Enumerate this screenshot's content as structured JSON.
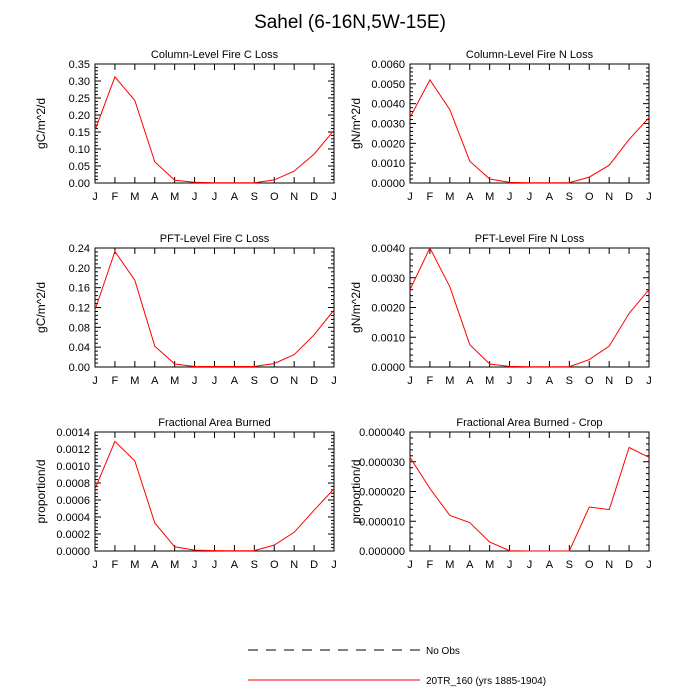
{
  "title": "Sahel (6-16N,5W-15E)",
  "colors": {
    "model_line": "#ff0000",
    "obs_line": "#000000",
    "axis": "#000000"
  },
  "legend": {
    "obs_label": "No Obs",
    "model_label": "20TR_160 (yrs 1885-1904)",
    "placement": "bottom-center"
  },
  "chart_data": [
    {
      "type": "line",
      "title": "Column-Level Fire C Loss",
      "ylabel": "gC/m^2/d",
      "xlabel": "",
      "categories": [
        "J",
        "F",
        "M",
        "A",
        "M",
        "J",
        "J",
        "A",
        "S",
        "O",
        "N",
        "D",
        "J"
      ],
      "ylim": [
        0,
        0.35
      ],
      "yticks": [
        "0.00",
        "0.05",
        "0.10",
        "0.15",
        "0.20",
        "0.25",
        "0.30",
        "0.35"
      ],
      "series": [
        {
          "name": "20TR_160 (yrs 1885-1904)",
          "values": [
            0.155,
            0.312,
            0.243,
            0.062,
            0.008,
            0.002,
            0.001,
            0.001,
            0.001,
            0.009,
            0.035,
            0.085,
            0.155
          ]
        }
      ]
    },
    {
      "type": "line",
      "title": "Column-Level Fire N Loss",
      "ylabel": "gN/m^2/d",
      "xlabel": "",
      "categories": [
        "J",
        "F",
        "M",
        "A",
        "M",
        "J",
        "J",
        "A",
        "S",
        "O",
        "N",
        "D",
        "J"
      ],
      "ylim": [
        0,
        0.006
      ],
      "yticks": [
        "0.0000",
        "0.0010",
        "0.0020",
        "0.0030",
        "0.0040",
        "0.0050",
        "0.0060"
      ],
      "series": [
        {
          "name": "20TR_160 (yrs 1885-1904)",
          "values": [
            0.0033,
            0.0052,
            0.0037,
            0.0011,
            0.0002,
            3e-05,
            1e-05,
            1e-05,
            2e-05,
            0.0003,
            0.0009,
            0.0022,
            0.0033
          ]
        }
      ]
    },
    {
      "type": "line",
      "title": "PFT-Level Fire C Loss",
      "ylabel": "gC/m^2/d",
      "xlabel": "",
      "categories": [
        "J",
        "F",
        "M",
        "A",
        "M",
        "J",
        "J",
        "A",
        "S",
        "O",
        "N",
        "D",
        "J"
      ],
      "ylim": [
        0,
        0.24
      ],
      "yticks": [
        "0.00",
        "0.04",
        "0.08",
        "0.12",
        "0.16",
        "0.20",
        "0.24"
      ],
      "series": [
        {
          "name": "20TR_160 (yrs 1885-1904)",
          "values": [
            0.115,
            0.233,
            0.175,
            0.042,
            0.006,
            0.001,
            0.001,
            0.001,
            0.001,
            0.007,
            0.025,
            0.065,
            0.115
          ]
        }
      ]
    },
    {
      "type": "line",
      "title": "PFT-Level Fire N Loss",
      "ylabel": "gN/m^2/d",
      "xlabel": "",
      "categories": [
        "J",
        "F",
        "M",
        "A",
        "M",
        "J",
        "J",
        "A",
        "S",
        "O",
        "N",
        "D",
        "J"
      ],
      "ylim": [
        0,
        0.004
      ],
      "yticks": [
        "0.0000",
        "0.0010",
        "0.0020",
        "0.0030",
        "0.0040"
      ],
      "series": [
        {
          "name": "20TR_160 (yrs 1885-1904)",
          "values": [
            0.0026,
            0.004,
            0.0027,
            0.00075,
            0.0001,
            2e-05,
            1e-05,
            1e-05,
            1e-05,
            0.00025,
            0.0007,
            0.0018,
            0.0026
          ]
        }
      ]
    },
    {
      "type": "line",
      "title": "Fractional Area Burned",
      "ylabel": "proportion/d",
      "xlabel": "",
      "categories": [
        "J",
        "F",
        "M",
        "A",
        "M",
        "J",
        "J",
        "A",
        "S",
        "O",
        "N",
        "D",
        "J"
      ],
      "ylim": [
        0,
        0.0014
      ],
      "yticks": [
        "0.0000",
        "0.0002",
        "0.0004",
        "0.0006",
        "0.0008",
        "0.0010",
        "0.0012",
        "0.0014"
      ],
      "series": [
        {
          "name": "20TR_160 (yrs 1885-1904)",
          "values": [
            0.00073,
            0.00129,
            0.00106,
            0.00033,
            5e-05,
            1e-05,
            5e-06,
            3e-06,
            5e-06,
            7e-05,
            0.00022,
            0.00048,
            0.00073
          ]
        }
      ]
    },
    {
      "type": "line",
      "title": "Fractional Area Burned - Crop",
      "ylabel": "proportion/d",
      "xlabel": "",
      "categories": [
        "J",
        "F",
        "M",
        "A",
        "M",
        "J",
        "J",
        "A",
        "S",
        "O",
        "N",
        "D",
        "J"
      ],
      "ylim": [
        0,
        4e-05
      ],
      "yticks": [
        "0.000000",
        "0.000010",
        "0.000020",
        "0.000030",
        "0.000040"
      ],
      "series": [
        {
          "name": "20TR_160 (yrs 1885-1904)",
          "values": [
            3.15e-05,
            2.1e-05,
            1.2e-05,
            9.5e-06,
            3e-06,
            1e-07,
            0.0,
            0.0,
            0.0,
            1.48e-05,
            1.39e-05,
            3.48e-05,
            3.15e-05
          ]
        }
      ]
    }
  ]
}
